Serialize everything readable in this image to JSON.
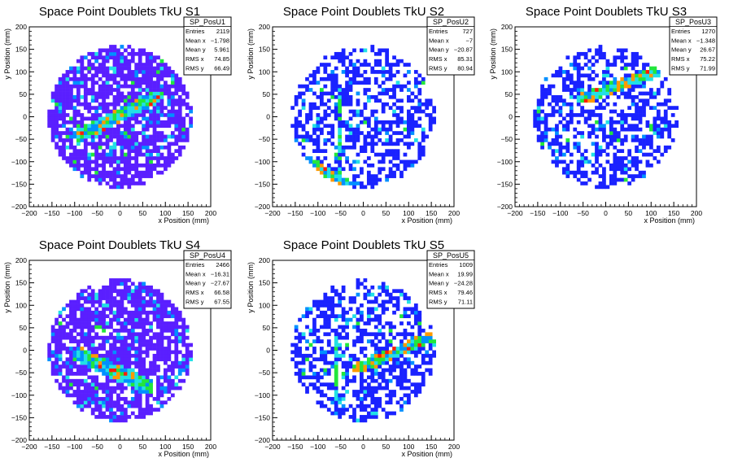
{
  "chart_data": [
    {
      "type": "heatmap",
      "title": "Space Point Doublets TkU S1",
      "xlabel": "x Position (mm)",
      "ylabel": "y Position (mm)",
      "xlim": [
        -200,
        200
      ],
      "ylim": [
        -200,
        200
      ],
      "xticks": [
        "-200",
        "-150",
        "-100",
        "-50",
        "0",
        "50",
        "100",
        "150",
        "200"
      ],
      "yticks": [
        "-200",
        "-150",
        "-100",
        "-50",
        "0",
        "50",
        "100",
        "150",
        "200"
      ],
      "stats": {
        "name": "SP_PosU1",
        "rows": [
          [
            "Entries",
            "2119"
          ],
          [
            "Mean x",
            "-1.798"
          ],
          [
            "Mean y",
            "5.961"
          ],
          [
            "RMS x",
            "74.85"
          ],
          [
            "RMS y",
            "66.49"
          ]
        ]
      },
      "palette": "violet",
      "features": {
        "band": {
          "from": [
            -90,
            -40
          ],
          "to": [
            80,
            45
          ],
          "width": 14
        },
        "arm": null,
        "seed": 11
      }
    },
    {
      "type": "heatmap",
      "title": "Space Point Doublets TkU S2",
      "xlabel": "x Position (mm)",
      "ylabel": "y Position (mm)",
      "xlim": [
        -200,
        200
      ],
      "ylim": [
        -200,
        200
      ],
      "xticks": [
        "-200",
        "-150",
        "-100",
        "-50",
        "0",
        "50",
        "100",
        "150",
        "200"
      ],
      "yticks": [
        "-200",
        "-150",
        "-100",
        "-50",
        "0",
        "50",
        "100",
        "150",
        "200"
      ],
      "stats": {
        "name": "SP_PosU2",
        "rows": [
          [
            "Entries",
            "727"
          ],
          [
            "Mean x",
            "-7"
          ],
          [
            "Mean y",
            "-20.87"
          ],
          [
            "RMS x",
            "85.31"
          ],
          [
            "RMS y",
            "80.94"
          ]
        ]
      },
      "palette": "blue",
      "features": {
        "band": {
          "from": [
            -120,
            -100
          ],
          "to": [
            -40,
            -150
          ],
          "width": 12
        },
        "arm": {
          "x": -50,
          "y0": -120,
          "y1": 60
        },
        "seed": 23
      }
    },
    {
      "type": "heatmap",
      "title": "Space Point Doublets TkU S3",
      "xlabel": "x Position (mm)",
      "ylabel": "y Position (mm)",
      "xlim": [
        -200,
        200
      ],
      "ylim": [
        -200,
        200
      ],
      "xticks": [
        "-200",
        "-150",
        "-100",
        "-50",
        "0",
        "50",
        "100",
        "150",
        "200"
      ],
      "yticks": [
        "-200",
        "-150",
        "-100",
        "-50",
        "0",
        "50",
        "100",
        "150",
        "200"
      ],
      "stats": {
        "name": "SP_PosU3",
        "rows": [
          [
            "Entries",
            "1270"
          ],
          [
            "Mean x",
            "-1.348"
          ],
          [
            "Mean y",
            "26.67"
          ],
          [
            "RMS x",
            "75.22"
          ],
          [
            "RMS y",
            "71.99"
          ]
        ]
      },
      "palette": "blue",
      "features": {
        "band": {
          "from": [
            -50,
            40
          ],
          "to": [
            110,
            100
          ],
          "width": 12
        },
        "arm": null,
        "seed": 37
      }
    },
    {
      "type": "heatmap",
      "title": "Space Point Doublets TkU S4",
      "xlabel": "x Position (mm)",
      "ylabel": "y Position (mm)",
      "xlim": [
        -200,
        200
      ],
      "ylim": [
        -200,
        200
      ],
      "xticks": [
        "-200",
        "-150",
        "-100",
        "-50",
        "0",
        "50",
        "100",
        "150",
        "200"
      ],
      "yticks": [
        "-200",
        "-150",
        "-100",
        "-50",
        "0",
        "50",
        "100",
        "150",
        "200"
      ],
      "stats": {
        "name": "SP_PosU4",
        "rows": [
          [
            "Entries",
            "2466"
          ],
          [
            "Mean x",
            "-16.31"
          ],
          [
            "Mean y",
            "-27.67"
          ],
          [
            "RMS x",
            "66.58"
          ],
          [
            "RMS y",
            "67.55"
          ]
        ]
      },
      "palette": "violet",
      "features": {
        "band": {
          "from": [
            -90,
            -10
          ],
          "to": [
            60,
            -80
          ],
          "width": 16
        },
        "arm": null,
        "seed": 51
      }
    },
    {
      "type": "heatmap",
      "title": "Space Point Doublets TkU S5",
      "xlabel": "x Position (mm)",
      "ylabel": "y Position (mm)",
      "xlim": [
        -200,
        200
      ],
      "ylim": [
        -200,
        200
      ],
      "xticks": [
        "-200",
        "-150",
        "-100",
        "-50",
        "0",
        "50",
        "100",
        "150",
        "200"
      ],
      "yticks": [
        "-200",
        "-150",
        "-100",
        "-50",
        "0",
        "50",
        "100",
        "150",
        "200"
      ],
      "stats": {
        "name": "SP_PosU5",
        "rows": [
          [
            "Entries",
            "1009"
          ],
          [
            "Mean x",
            "19.99"
          ],
          [
            "Mean y",
            "-24.28"
          ],
          [
            "RMS x",
            "79.46"
          ],
          [
            "RMS y",
            "71.11"
          ]
        ]
      },
      "palette": "blue",
      "features": {
        "band": {
          "from": [
            -10,
            -40
          ],
          "to": [
            150,
            30
          ],
          "width": 12
        },
        "arm": {
          "x": -60,
          "y0": -110,
          "y1": 40
        },
        "seed": 67
      }
    }
  ],
  "colors": {
    "low_violet": "#5a1fff",
    "low_blue": "#1a22ff",
    "mid1": "#0090ff",
    "mid2": "#22e0e6",
    "mid3": "#22e63c",
    "mid4": "#c8e600",
    "high1": "#ff9a00",
    "high2": "#ff1e00"
  }
}
